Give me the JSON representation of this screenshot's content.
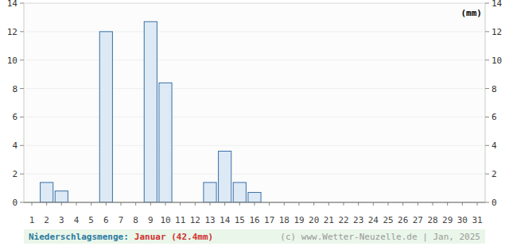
{
  "chart_data": {
    "type": "bar",
    "title": "Niederschlagsmenge:",
    "subtitle": "Januar (42.4mm)",
    "source": "(c) www.Wetter-Neuzelle.de | Jan, 2025",
    "y_label": "(mm)",
    "categories": [
      "1",
      "2",
      "3",
      "4",
      "5",
      "6",
      "7",
      "8",
      "9",
      "10",
      "11",
      "12",
      "13",
      "14",
      "15",
      "16",
      "17",
      "18",
      "19",
      "20",
      "21",
      "22",
      "23",
      "24",
      "25",
      "26",
      "27",
      "28",
      "29",
      "30",
      "31"
    ],
    "values": [
      0,
      1.4,
      0.8,
      0,
      0,
      12.0,
      0,
      0,
      12.7,
      8.4,
      0,
      0,
      1.4,
      3.6,
      1.4,
      0.7,
      0,
      0,
      0,
      0,
      0,
      0,
      0,
      0,
      0,
      0,
      0,
      0,
      0,
      0,
      0
    ],
    "color": "#dde9f5",
    "ylim": [
      0,
      14
    ],
    "yticks": [
      0,
      2,
      4,
      6,
      8,
      10,
      12,
      14
    ],
    "grid": true
  }
}
